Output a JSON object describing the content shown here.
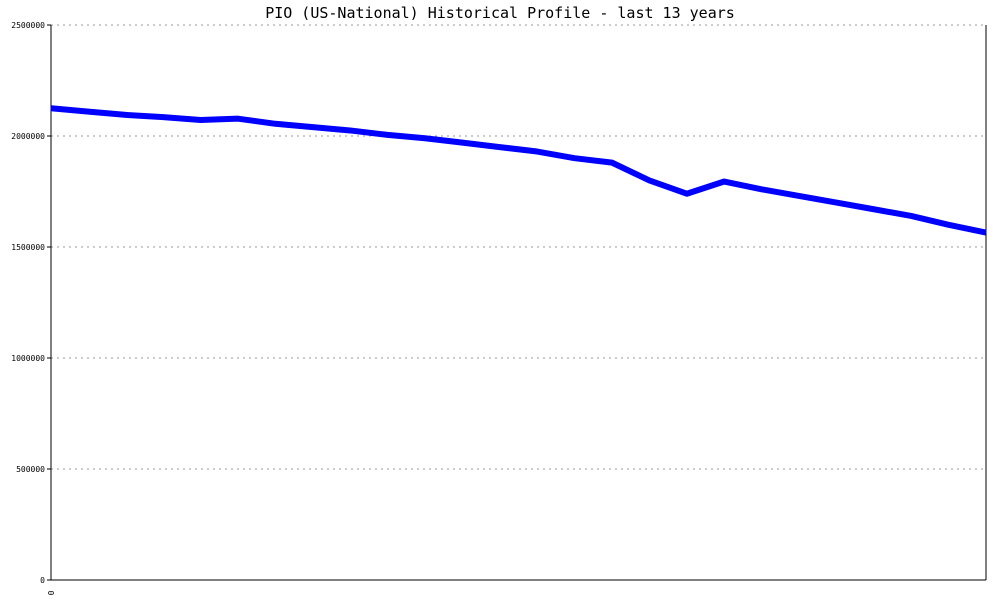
{
  "chart_data": {
    "type": "line",
    "title": "PIO (US-National) Historical Profile - last 13 years",
    "xlabel": "",
    "ylabel": "",
    "ylim": [
      0,
      2500000
    ],
    "y_ticks": [
      {
        "value": 0,
        "label": "0"
      },
      {
        "value": 500000,
        "label": "500000"
      },
      {
        "value": 1000000,
        "label": "1000000"
      },
      {
        "value": 1500000,
        "label": "1500000"
      },
      {
        "value": 2000000,
        "label": "2000000"
      },
      {
        "value": 2500000,
        "label": "2500000"
      }
    ],
    "x_ticks": [
      {
        "value": 0,
        "label": "0"
      }
    ],
    "xlim": [
      0,
      25
    ],
    "grid": "horizontal-dotted",
    "series": [
      {
        "color": "#0000ff",
        "x": [
          0,
          1,
          2,
          3,
          4,
          5,
          6,
          7,
          8,
          9,
          10,
          11,
          12,
          13,
          14,
          15,
          16,
          17,
          18,
          19,
          20,
          21,
          22,
          23,
          24,
          25
        ],
        "y": [
          2125000,
          2110000,
          2095000,
          2085000,
          2072000,
          2078000,
          2055000,
          2040000,
          2025000,
          2005000,
          1990000,
          1970000,
          1950000,
          1930000,
          1900000,
          1880000,
          1800000,
          1740000,
          1795000,
          1760000,
          1730000,
          1700000,
          1670000,
          1640000,
          1600000,
          1565000
        ]
      }
    ]
  }
}
